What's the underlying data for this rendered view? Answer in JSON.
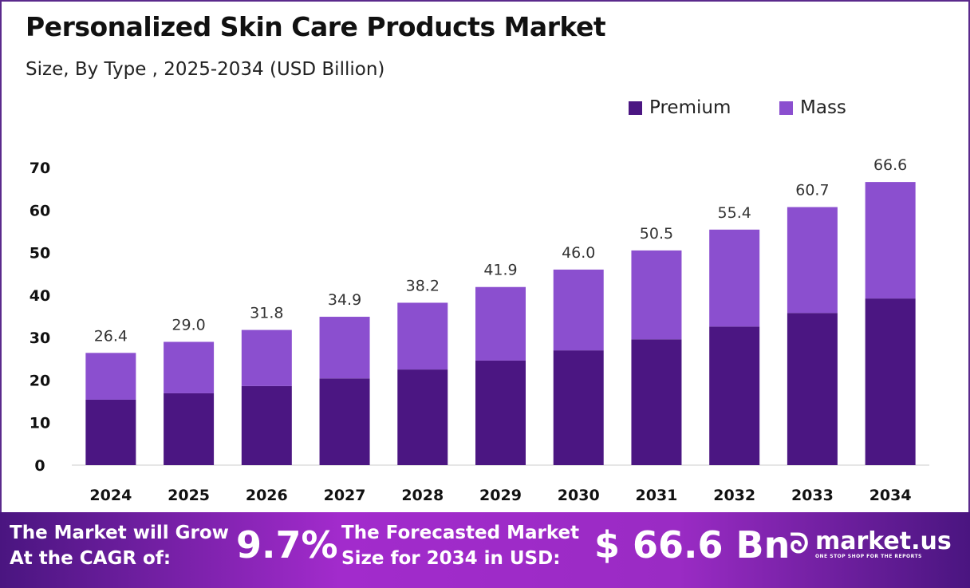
{
  "chart_data": {
    "type": "bar",
    "stacked": true,
    "title": "Personalized Skin Care Products Market",
    "subtitle": "Size, By Type , 2025-2034 (USD Billion)",
    "categories": [
      "2024",
      "2025",
      "2026",
      "2027",
      "2028",
      "2029",
      "2030",
      "2031",
      "2032",
      "2033",
      "2034"
    ],
    "series": [
      {
        "name": "Premium",
        "color": "#4b1682",
        "values": [
          15.4,
          16.9,
          18.6,
          20.4,
          22.5,
          24.6,
          27.0,
          29.6,
          32.6,
          35.8,
          39.2
        ]
      },
      {
        "name": "Mass",
        "color": "#8b4fcf",
        "values": [
          11.0,
          12.1,
          13.2,
          14.5,
          15.7,
          17.3,
          19.0,
          20.9,
          22.8,
          24.9,
          27.4
        ]
      }
    ],
    "totals": [
      "26.4",
      "29.0",
      "31.8",
      "34.9",
      "38.2",
      "41.9",
      "46.0",
      "50.5",
      "55.4",
      "60.7",
      "66.6"
    ],
    "yticks": [
      0,
      10,
      20,
      30,
      40,
      50,
      60,
      70
    ],
    "ylim": [
      0,
      70
    ],
    "grid": false,
    "legend": "top-right"
  },
  "footer": {
    "cagr_label_1": "The Market will Grow",
    "cagr_label_2": "At the CAGR of:",
    "cagr_value": "9.7%",
    "forecast_label_1": "The Forecasted Market",
    "forecast_label_2": "Size for 2034 in USD:",
    "forecast_value": "$ 66.6 Bn",
    "brand": "market.us",
    "tagline": "ONE STOP SHOP FOR THE REPORTS"
  }
}
